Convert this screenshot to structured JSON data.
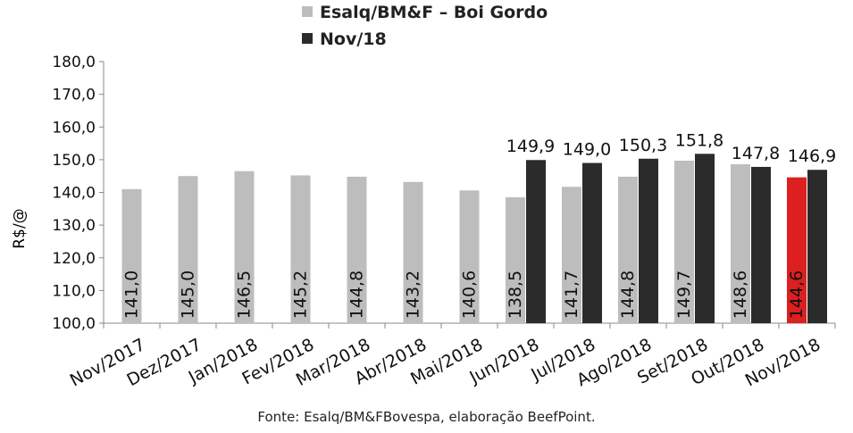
{
  "chart_data": {
    "type": "bar",
    "ylabel": "R$/@",
    "ylim": [
      100,
      180
    ],
    "yticks": [
      "100,0",
      "110,0",
      "120,0",
      "130,0",
      "140,0",
      "150,0",
      "160,0",
      "170,0",
      "180,0"
    ],
    "categories": [
      "Nov/2017",
      "Dez/2017",
      "Jan/2018",
      "Fev/2018",
      "Mar/2018",
      "Abr/2018",
      "Mai/2018",
      "Jun/2018",
      "Jul/2018",
      "Ago/2018",
      "Set/2018",
      "Out/2018",
      "Nov/2018"
    ],
    "series": [
      {
        "name": "Esalq/BM&F – Boi Gordo",
        "color": "#bdbdbd",
        "highlight_color": "#dd1f1f",
        "highlight_index": 12,
        "values": [
          141.0,
          145.0,
          146.5,
          145.2,
          144.8,
          143.2,
          140.6,
          138.5,
          141.7,
          144.8,
          149.7,
          148.6,
          144.6
        ],
        "labels": [
          "141,0",
          "145,0",
          "146,5",
          "145,2",
          "144,8",
          "143,2",
          "140,6",
          "138,5",
          "141,7",
          "144,8",
          "149,7",
          "148,6",
          "144,6"
        ]
      },
      {
        "name": "Nov/18",
        "color": "#2b2b2b",
        "values": [
          null,
          null,
          null,
          null,
          null,
          null,
          null,
          149.9,
          149.0,
          150.3,
          151.8,
          147.8,
          146.9
        ],
        "labels": [
          "",
          "",
          "",
          "",
          "",
          "",
          "",
          "149,9",
          "149,0",
          "150,3",
          "151,8",
          "147,8",
          "146,9"
        ]
      }
    ],
    "grid": false,
    "legend_position": "top"
  },
  "source": "Fonte: Esalq/BM&FBovespa, elaboração BeefPoint."
}
